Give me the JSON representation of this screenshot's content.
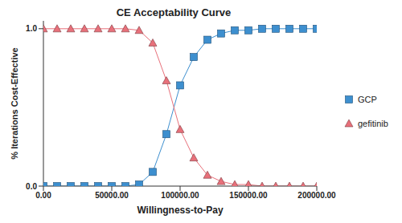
{
  "chart_data": {
    "type": "line",
    "title": "CE Acceptability Curve",
    "x_label": "Willingness-to-Pay",
    "y_label": "% Iterations Cost-Effective",
    "x": [
      0,
      10000,
      20000,
      30000,
      40000,
      50000,
      60000,
      70000,
      80000,
      90000,
      100000,
      110000,
      120000,
      130000,
      140000,
      150000,
      160000,
      170000,
      180000,
      190000,
      200000
    ],
    "series": [
      {
        "name": "GCP",
        "color": "#3d8fcf",
        "marker": "square",
        "values": [
          0,
          0,
          0,
          0,
          0,
          0,
          0,
          0.01,
          0.09,
          0.33,
          0.64,
          0.82,
          0.93,
          0.97,
          0.99,
          0.99,
          1,
          1,
          1,
          1,
          1
        ]
      },
      {
        "name": "gefitinib",
        "color": "#e8707a",
        "marker": "triangle",
        "values": [
          1,
          1,
          1,
          1,
          1,
          1,
          1,
          0.99,
          0.91,
          0.67,
          0.36,
          0.18,
          0.07,
          0.03,
          0.01,
          0.01,
          0,
          0,
          0,
          0,
          0
        ]
      }
    ],
    "xlim": [
      0,
      200000
    ],
    "xticks": [
      {
        "value": 0,
        "label": "0.00"
      },
      {
        "value": 50000,
        "label": "50000.00"
      },
      {
        "value": 100000,
        "label": "100000.00"
      },
      {
        "value": 150000,
        "label": "150000.00"
      },
      {
        "value": 200000,
        "label": "200000.00"
      }
    ],
    "ylim": [
      0,
      1.05
    ],
    "yticks": [
      {
        "value": 0,
        "label": "0.0"
      },
      {
        "value": 1,
        "label": "1.0"
      }
    ],
    "grid": false,
    "legend": "right"
  }
}
